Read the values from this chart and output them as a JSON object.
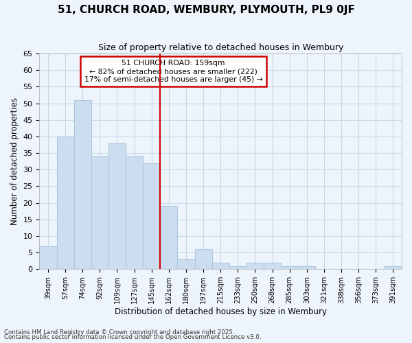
{
  "title1": "51, CHURCH ROAD, WEMBURY, PLYMOUTH, PL9 0JF",
  "title2": "Size of property relative to detached houses in Wembury",
  "xlabel": "Distribution of detached houses by size in Wembury",
  "ylabel": "Number of detached properties",
  "categories": [
    "39sqm",
    "57sqm",
    "74sqm",
    "92sqm",
    "109sqm",
    "127sqm",
    "145sqm",
    "162sqm",
    "180sqm",
    "197sqm",
    "215sqm",
    "233sqm",
    "250sqm",
    "268sqm",
    "285sqm",
    "303sqm",
    "321sqm",
    "338sqm",
    "356sqm",
    "373sqm",
    "391sqm"
  ],
  "values": [
    7,
    40,
    51,
    34,
    38,
    34,
    32,
    19,
    3,
    6,
    2,
    1,
    2,
    2,
    1,
    1,
    0,
    0,
    0,
    0,
    1
  ],
  "bar_color": "#ccddf0",
  "bar_edge_color": "#aec8e0",
  "vline_x_index": 7,
  "annotation_title": "51 CHURCH ROAD: 159sqm",
  "annotation_line1": "← 82% of detached houses are smaller (222)",
  "annotation_line2": "17% of semi-detached houses are larger (45) →",
  "annotation_box_color": "#ffffff",
  "annotation_box_edge_color": "#cc0000",
  "vline_color": "#cc0000",
  "ylim": [
    0,
    65
  ],
  "yticks": [
    0,
    5,
    10,
    15,
    20,
    25,
    30,
    35,
    40,
    45,
    50,
    55,
    60,
    65
  ],
  "grid_color": "#c8d8e8",
  "bg_color": "#eef4fb",
  "plot_bg_color": "#eef4fb",
  "title1_fontsize": 11,
  "title2_fontsize": 9,
  "footer1": "Contains HM Land Registry data © Crown copyright and database right 2025.",
  "footer2": "Contains public sector information licensed under the Open Government Licence v3.0."
}
